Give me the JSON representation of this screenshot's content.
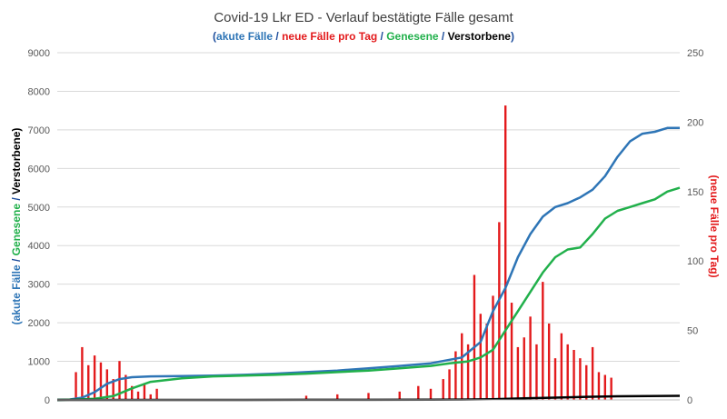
{
  "chart_data": {
    "type": "line",
    "title": "Covid-19 Lkr ED - Verlauf bestätigte Fälle gesamt",
    "subtitle": [
      {
        "text": "(",
        "color": "#1f4e9c"
      },
      {
        "text": "akute Fälle",
        "color": "#2e75b6"
      },
      {
        "text": " / ",
        "color": "#1f4e9c"
      },
      {
        "text": "neue Fälle pro Tag",
        "color": "#e31a1c"
      },
      {
        "text": " / ",
        "color": "#1f4e9c"
      },
      {
        "text": "Genesene",
        "color": "#21b04b"
      },
      {
        "text": " / ",
        "color": "#1f4e9c"
      },
      {
        "text": "Verstorbene",
        "color": "#000000"
      },
      {
        "text": ")",
        "color": "#1f4e9c"
      }
    ],
    "ylabel_left": [
      {
        "text": "(akute Fälle",
        "color": "#2e75b6"
      },
      {
        "text": " / ",
        "color": "#1f4e9c"
      },
      {
        "text": "Genesene",
        "color": "#21b04b"
      },
      {
        "text": " / ",
        "color": "#1f4e9c"
      },
      {
        "text": "Verstorbene)",
        "color": "#000000"
      }
    ],
    "ylabel_right": "(neue Fälle pro Tag)",
    "ylim_left": [
      0,
      9000
    ],
    "ylim_right": [
      0,
      250
    ],
    "yticks_left": [
      0,
      1000,
      2000,
      3000,
      4000,
      5000,
      6000,
      7000,
      8000,
      9000
    ],
    "yticks_right": [
      0,
      50,
      100,
      150,
      200,
      250
    ],
    "grid": "horizontal",
    "x_range": [
      0,
      100
    ],
    "series": [
      {
        "axis": "left",
        "color": "#2e75b6",
        "x": [
          0,
          2,
          4,
          6,
          8,
          10,
          12,
          15,
          20,
          25,
          30,
          35,
          40,
          45,
          50,
          55,
          60,
          65,
          68,
          70,
          72,
          74,
          76,
          78,
          80,
          82,
          84,
          86,
          88,
          90,
          92,
          94,
          96,
          98,
          100
        ],
        "y": [
          0,
          10,
          60,
          200,
          420,
          540,
          590,
          610,
          620,
          630,
          650,
          680,
          720,
          760,
          820,
          880,
          950,
          1100,
          1500,
          2300,
          2900,
          3700,
          4300,
          4750,
          5000,
          5100,
          5250,
          5450,
          5800,
          6300,
          6700,
          6900,
          6950,
          7050,
          7050
        ]
      },
      {
        "axis": "left",
        "color": "#21b04b",
        "x": [
          0,
          3,
          6,
          9,
          12,
          15,
          20,
          25,
          30,
          35,
          40,
          45,
          50,
          55,
          60,
          63,
          66,
          68,
          70,
          72,
          74,
          76,
          78,
          80,
          82,
          84,
          86,
          88,
          90,
          92,
          94,
          96,
          98,
          100
        ],
        "y": [
          0,
          10,
          30,
          100,
          300,
          470,
          560,
          610,
          630,
          650,
          680,
          720,
          760,
          820,
          880,
          950,
          1000,
          1100,
          1300,
          1800,
          2300,
          2800,
          3300,
          3700,
          3900,
          3950,
          4300,
          4700,
          4900,
          5000,
          5100,
          5200,
          5400,
          5500
        ]
      },
      {
        "axis": "left",
        "color": "#000000",
        "x": [
          0,
          10,
          20,
          30,
          40,
          50,
          60,
          65,
          70,
          75,
          80,
          85,
          90,
          95,
          100
        ],
        "y": [
          0,
          0,
          0,
          1,
          2,
          3,
          5,
          10,
          20,
          40,
          60,
          80,
          95,
          100,
          105
        ]
      }
    ],
    "bars": {
      "axis": "right",
      "color": "#e31a1c",
      "description_values": [
        [
          3,
          20
        ],
        [
          4,
          38
        ],
        [
          5,
          25
        ],
        [
          6,
          32
        ],
        [
          7,
          27
        ],
        [
          8,
          22
        ],
        [
          9,
          15
        ],
        [
          10,
          28
        ],
        [
          11,
          18
        ],
        [
          12,
          10
        ],
        [
          13,
          6
        ],
        [
          14,
          12
        ],
        [
          15,
          4
        ],
        [
          16,
          8
        ],
        [
          40,
          3
        ],
        [
          45,
          4
        ],
        [
          50,
          5
        ],
        [
          55,
          6
        ],
        [
          58,
          10
        ],
        [
          60,
          8
        ],
        [
          62,
          15
        ],
        [
          63,
          22
        ],
        [
          64,
          35
        ],
        [
          65,
          48
        ],
        [
          66,
          40
        ],
        [
          67,
          90
        ],
        [
          68,
          62
        ],
        [
          69,
          55
        ],
        [
          70,
          75
        ],
        [
          71,
          128
        ],
        [
          72,
          212
        ],
        [
          73,
          70
        ],
        [
          74,
          38
        ],
        [
          75,
          45
        ],
        [
          76,
          60
        ],
        [
          77,
          40
        ],
        [
          78,
          85
        ],
        [
          79,
          55
        ],
        [
          80,
          30
        ],
        [
          81,
          48
        ],
        [
          82,
          40
        ],
        [
          83,
          36
        ],
        [
          84,
          30
        ],
        [
          85,
          25
        ],
        [
          86,
          38
        ],
        [
          87,
          20
        ],
        [
          88,
          18
        ],
        [
          89,
          16
        ]
      ]
    }
  }
}
